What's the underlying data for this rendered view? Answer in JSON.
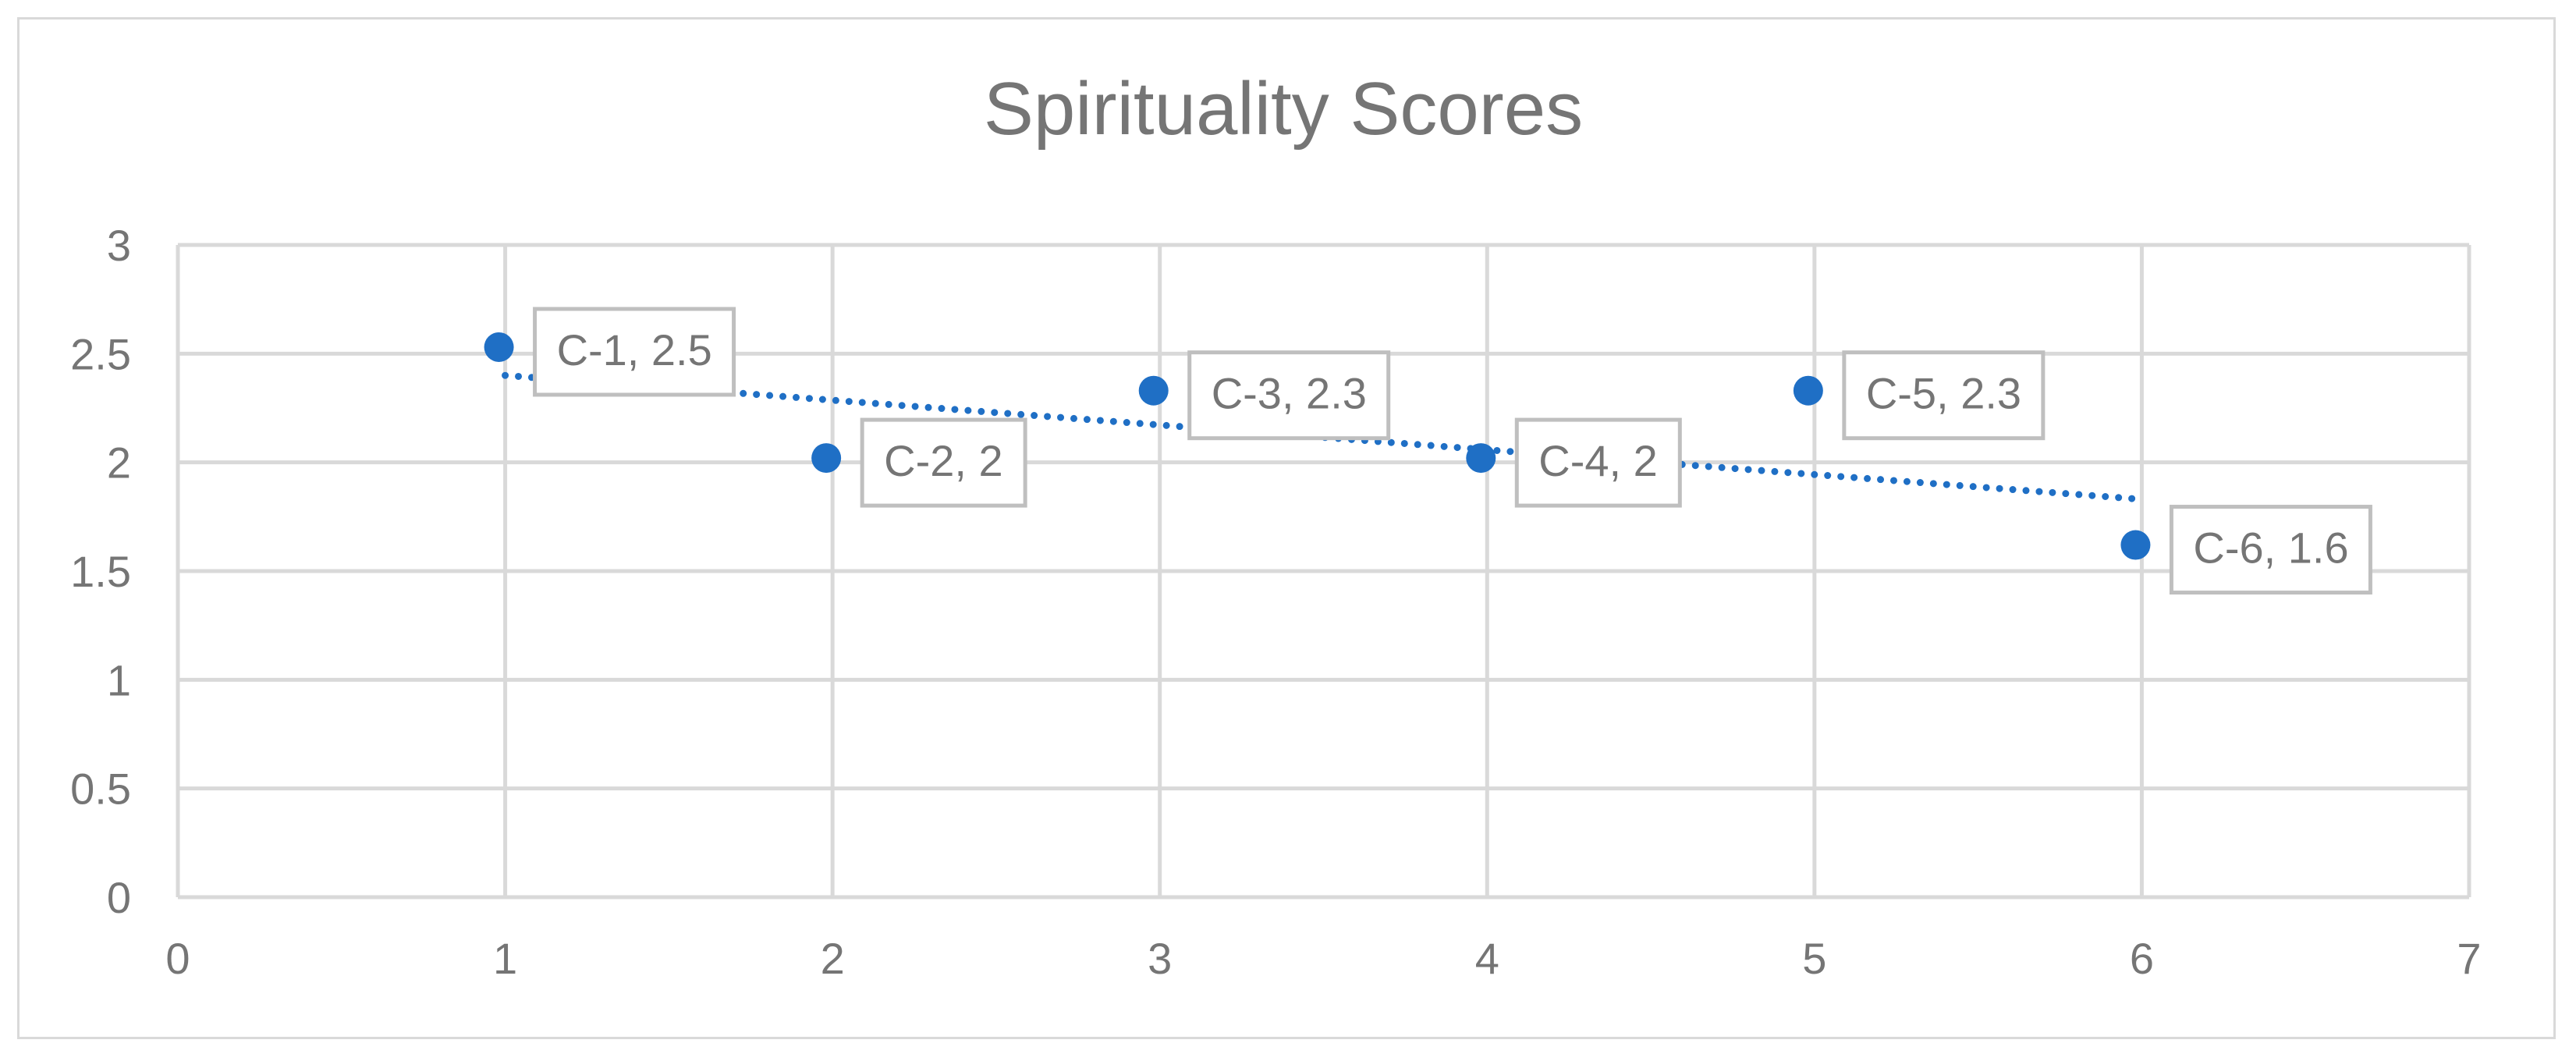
{
  "chart_data": {
    "type": "scatter",
    "title": "Spirituality Scores",
    "xlabel": "",
    "ylabel": "",
    "xlim": [
      0,
      7
    ],
    "ylim": [
      0,
      3
    ],
    "xticks": [
      0,
      1,
      2,
      3,
      4,
      5,
      6,
      7
    ],
    "yticks": [
      0,
      0.5,
      1,
      1.5,
      2,
      2.5,
      3
    ],
    "grid": true,
    "legend": "none",
    "colors": {
      "point": "#1f6fc5",
      "trendline": "#1f6fc5",
      "grid": "#d9d9d9",
      "text": "#757575"
    },
    "points": [
      {
        "x": 1,
        "y": 2.53,
        "label": "C-1, 2.5"
      },
      {
        "x": 2,
        "y": 2.02,
        "label": "C-2, 2"
      },
      {
        "x": 3,
        "y": 2.33,
        "label": "C-3, 2.3"
      },
      {
        "x": 4,
        "y": 2.02,
        "label": "C-4, 2"
      },
      {
        "x": 5,
        "y": 2.33,
        "label": "C-5, 2.3"
      },
      {
        "x": 6,
        "y": 1.62,
        "label": "C-6, 1.6"
      }
    ],
    "trendline": {
      "type": "linear",
      "style": "dotted",
      "x": [
        1,
        6
      ],
      "y": [
        2.4,
        1.83
      ]
    }
  }
}
